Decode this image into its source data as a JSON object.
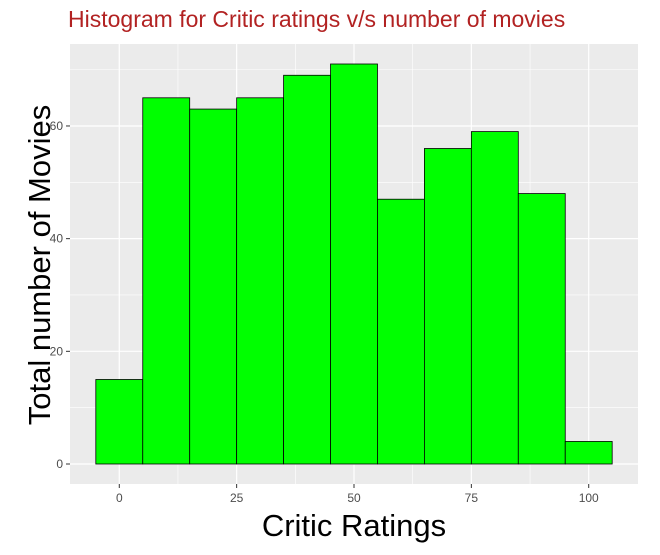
{
  "chart_data": {
    "type": "bar",
    "title": "Histogram for Critic ratings v/s number of movies",
    "xlabel": "Critic Ratings",
    "ylabel": "Total number of Movies",
    "bins": [
      {
        "x0": -5,
        "x1": 5,
        "count": 15
      },
      {
        "x0": 5,
        "x1": 15,
        "count": 65
      },
      {
        "x0": 15,
        "x1": 25,
        "count": 63
      },
      {
        "x0": 25,
        "x1": 35,
        "count": 65
      },
      {
        "x0": 35,
        "x1": 45,
        "count": 69
      },
      {
        "x0": 45,
        "x1": 55,
        "count": 71
      },
      {
        "x0": 55,
        "x1": 65,
        "count": 47
      },
      {
        "x0": 65,
        "x1": 75,
        "count": 56
      },
      {
        "x0": 75,
        "x1": 85,
        "count": 59
      },
      {
        "x0": 85,
        "x1": 95,
        "count": 48
      },
      {
        "x0": 95,
        "x1": 105,
        "count": 4
      }
    ],
    "xticks": [
      0,
      25,
      50,
      75,
      100
    ],
    "yticks": [
      0,
      20,
      40,
      60
    ],
    "xlim": [
      -10.5,
      110.5
    ],
    "ylim": [
      -3.55,
      74.55
    ],
    "grid": true,
    "colors": {
      "bar_fill": "#00ff00",
      "bar_stroke": "#000000",
      "panel_background": "#ebebeb",
      "grid": "#ffffff",
      "title": "#b22222"
    }
  }
}
